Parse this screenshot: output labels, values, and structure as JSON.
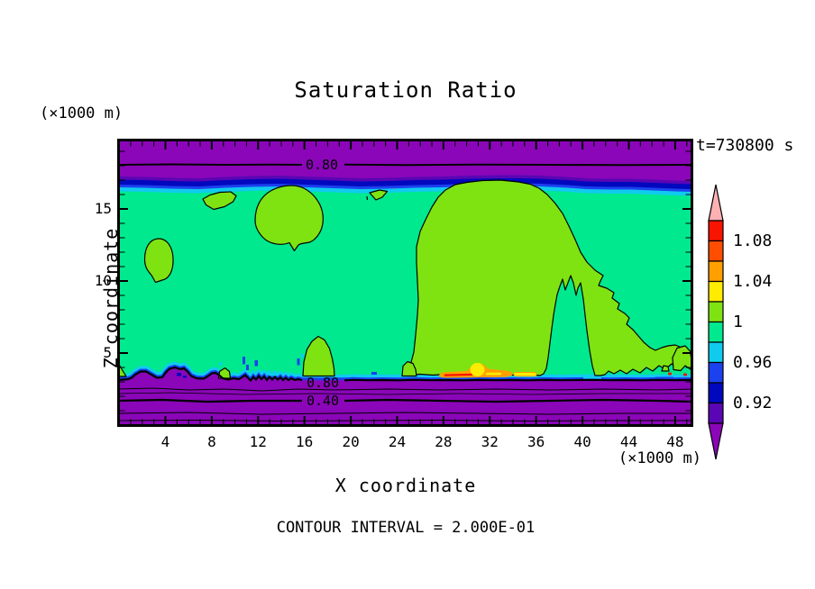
{
  "title": "Saturation Ratio",
  "time_label": "t=730800 s",
  "axis": {
    "x_label": "X coordinate",
    "y_label": "Z coordinate",
    "x_unit_label": "(×1000 m)",
    "y_unit_label": "(×1000 m)",
    "x_ticks": [
      "4",
      "8",
      "12",
      "16",
      "20",
      "24",
      "28",
      "32",
      "36",
      "40",
      "44",
      "48"
    ],
    "y_ticks": [
      "5",
      "10",
      "15"
    ]
  },
  "footer": {
    "contour_note": "CONTOUR INTERVAL = 2.000E-01"
  },
  "contour_labels": {
    "top_080": "0.80",
    "bottom_080": "0.80",
    "bottom_040": "0.40"
  },
  "colorbar": {
    "tick_labels": [
      "1.08",
      "1.04",
      "1",
      "0.96",
      "0.92"
    ],
    "band_colors_top_to_bottom": [
      "#F81400",
      "#FF4E00",
      "#FFA000",
      "#FFEC00",
      "#7FE312",
      "#00E98E",
      "#10CBEE",
      "#1C41EE",
      "#0008BE",
      "#5A06B4"
    ],
    "arrow_top_color": "#FFB0B2",
    "arrow_bottom_color": "#8A06B8"
  },
  "palette": {
    "purple": "#8A06B8",
    "violet": "#5A06B4",
    "navy": "#0008BE",
    "blue": "#1C41EE",
    "cyan": "#10CBEE",
    "green": "#00E98E",
    "chartreuse": "#7FE312",
    "yellow": "#FFEC00",
    "orange": "#FFA000",
    "orangered": "#FF4E00",
    "red": "#F81400",
    "pink": "#FFB0B2"
  },
  "chart_data": {
    "type": "heatmap",
    "subtype": "filled-contour",
    "title": "Saturation Ratio",
    "xlabel": "X coordinate (×1000 m)",
    "ylabel": "Z coordinate (×1000 m)",
    "xlim": [
      0,
      49.5
    ],
    "ylim": [
      0,
      19.9
    ],
    "x_major_ticks": [
      4,
      8,
      12,
      16,
      20,
      24,
      28,
      32,
      36,
      40,
      44,
      48
    ],
    "y_major_ticks": [
      5,
      10,
      15
    ],
    "minor_tick_step": 1,
    "time_label": "t=730800 s",
    "contour_interval": "2.000E-01",
    "colorbar_tick_values": [
      1.08,
      1.04,
      1,
      0.96,
      0.92
    ],
    "colorbar_band_edges": [
      0.9,
      0.92,
      0.94,
      0.96,
      0.98,
      1.0,
      1.02,
      1.04,
      1.06,
      1.08,
      1.1
    ],
    "labeled_contours": [
      {
        "value": 0.8,
        "where": "horizontal line near z≈18.1 across full width (upper dry layer)"
      },
      {
        "value": 0.8,
        "where": "wavy line along cloud base z≈3.0"
      },
      {
        "value": 0.4,
        "where": "horizontal line z≈1.7 in lower dry layer"
      }
    ],
    "regions": [
      {
        "saturation": "< 0.90",
        "color_name": "purple",
        "where": "top layer z≈17–19.9 and bottom layer z≈0–3.1"
      },
      {
        "saturation": "0.90–0.98",
        "color_name": "indigo/navy/blue/cyan thin bands",
        "where": "cloud-top transition z≈16.4–17.2 and fringes at cloud base z≈3.1–3.5"
      },
      {
        "saturation": "0.98–1.00",
        "color_name": "spring green",
        "where": "main cloud layer z≈3.2–16.6"
      },
      {
        "saturation": "1.00–1.02",
        "color_name": "yellow-green pockets",
        "where": "x≈7–10 z≈15–16.2; x≈11.8–17.6 z≈12–16.6; x≈2–4.7 z≈10–13; x≈21.6–23 z≈15.6–16.2; large mass x≈25–49 z≈3.4–16.6 with green notch x≈37–41 below z≈10.6; column x≈16–18.6 z≈3.4–6.2; small spots along z≈3.4"
      },
      {
        "saturation": "1.02–1.10",
        "color_name": "yellow/orange/red streaks",
        "where": "x≈27.5–36, z≈3.4–3.8"
      },
      {
        "saturation": "0.80–0.90 bumps",
        "color_name": "purple mounds with blue/cyan fringes",
        "where": "x≈1.5–9, z≈3.0–4.1"
      }
    ]
  }
}
